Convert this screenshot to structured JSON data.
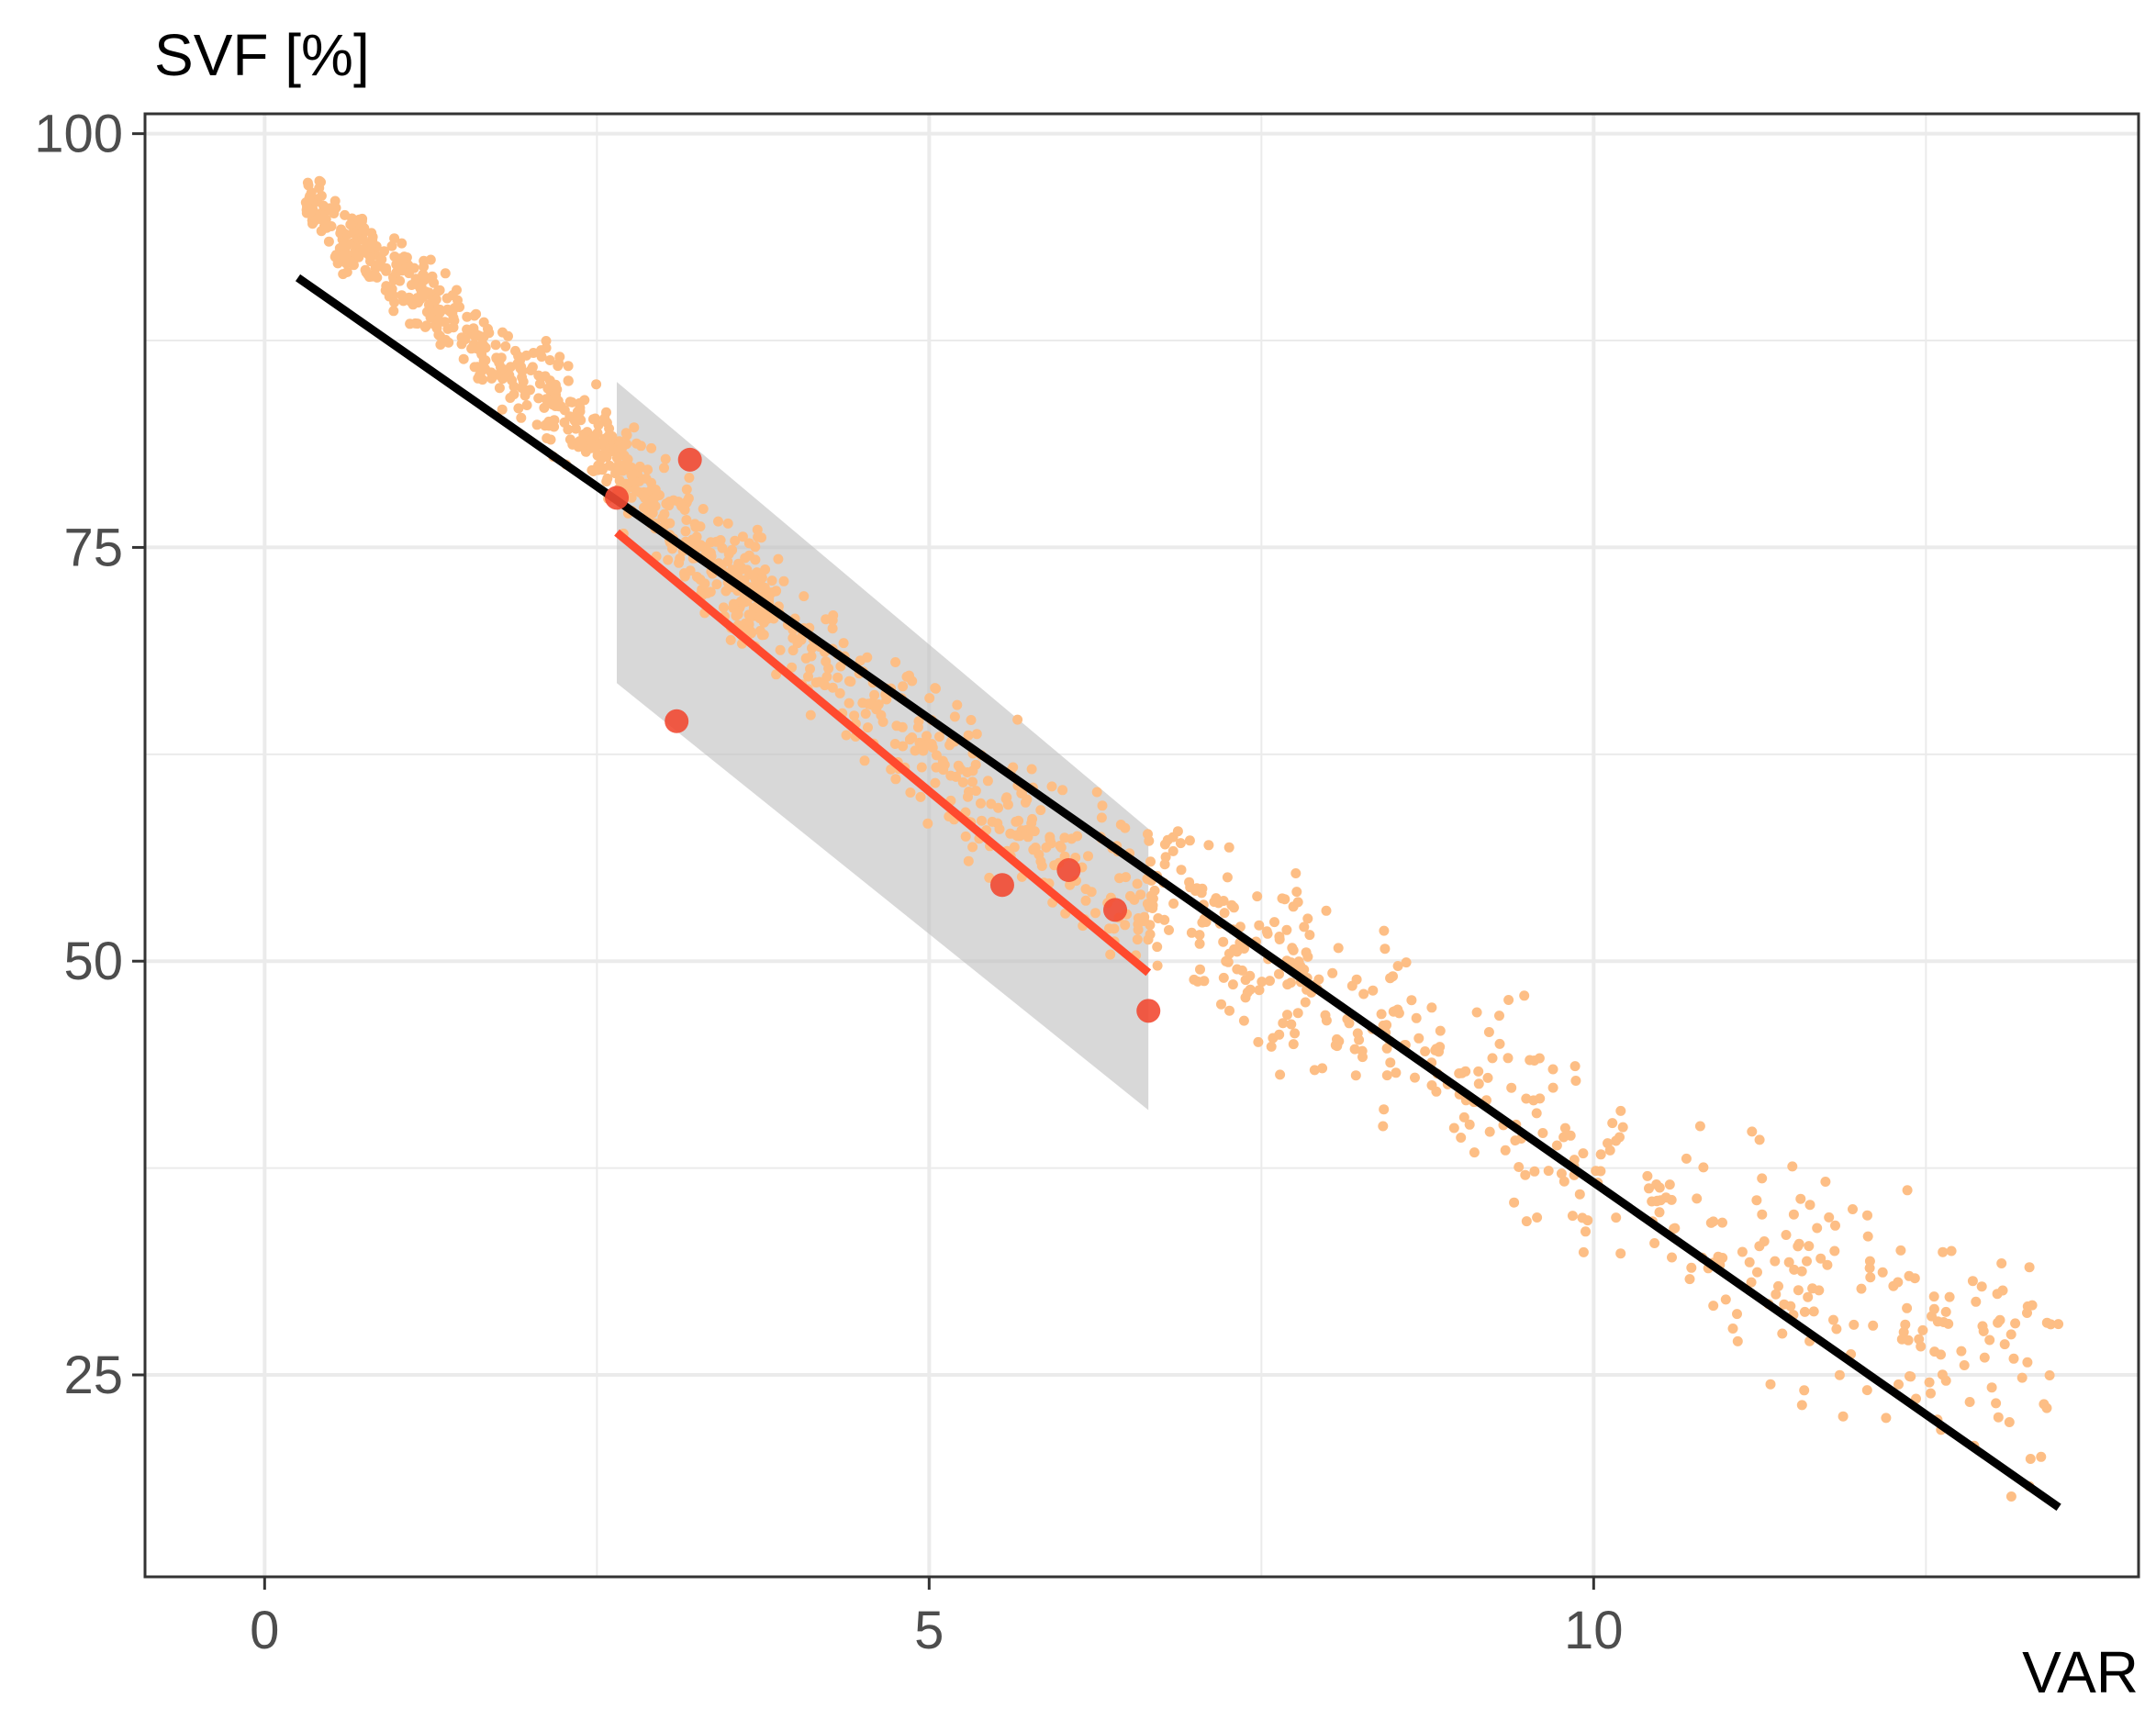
{
  "chart_data": {
    "type": "scatter",
    "title": "",
    "xlabel": "VAR",
    "ylabel": "SVF [%]",
    "xlim": [
      -0.9,
      14.1
    ],
    "ylim": [
      12.8,
      101.2
    ],
    "x_ticks": [
      0,
      5,
      10
    ],
    "y_ticks": [
      25,
      50,
      75,
      100
    ],
    "x_tick_labels": [
      "0",
      "5",
      "10"
    ],
    "y_tick_labels": [
      "25",
      "50",
      "75",
      "100"
    ],
    "x_minor_ticks": [
      2.5,
      7.5,
      12.5
    ],
    "y_minor_ticks": [
      37.5,
      62.5,
      87.5
    ],
    "grid": true,
    "colors": {
      "background_points": "#FDBE85",
      "highlight_points": "#F24A33",
      "red_fit": "#FF4A2E",
      "black_fit": "#000000",
      "confidence_band": "#BEBEBE",
      "grid": "#EBEBEB",
      "panel_border": "#333333"
    },
    "series": [
      {
        "kind": "points",
        "points_note_cloud_trend": {
          "x": [
            0.3,
            0.6,
            1.0,
            1.5,
            2.0,
            2.5,
            3.0,
            3.5,
            4.0,
            4.5,
            5.0,
            5.5,
            6.0,
            6.5,
            7.0,
            7.5,
            8.0,
            8.5,
            9.0,
            9.5,
            10.0,
            10.5,
            11.0,
            11.5,
            12.0,
            12.5,
            13.0,
            13.5
          ],
          "y": [
            96.5,
            93.5,
            91.5,
            88.0,
            85.0,
            81.5,
            77.0,
            73.0,
            69.5,
            66.0,
            63.0,
            59.5,
            57.0,
            55.0,
            53.0,
            50.5,
            48.0,
            45.5,
            43.5,
            41.0,
            38.5,
            36.0,
            33.5,
            31.5,
            29.5,
            28.0,
            26.5,
            25.0
          ]
        }
      },
      {
        "kind": "highlight_points",
        "x": [
          2.65,
          3.2,
          3.1,
          5.55,
          6.05,
          6.4,
          6.65
        ],
        "y": [
          78.0,
          80.3,
          64.5,
          54.6,
          55.5,
          53.1,
          47.0
        ]
      },
      {
        "kind": "line",
        "x": [
          0.25,
          13.5
        ],
        "y": [
          91.3,
          17.0
        ]
      },
      {
        "kind": "line_with_band",
        "x": [
          2.65,
          6.65
        ],
        "y": [
          75.9,
          49.3
        ],
        "band_upper": [
          85.0,
          58.0
        ],
        "band_lower": [
          66.8,
          41.0
        ]
      }
    ]
  }
}
